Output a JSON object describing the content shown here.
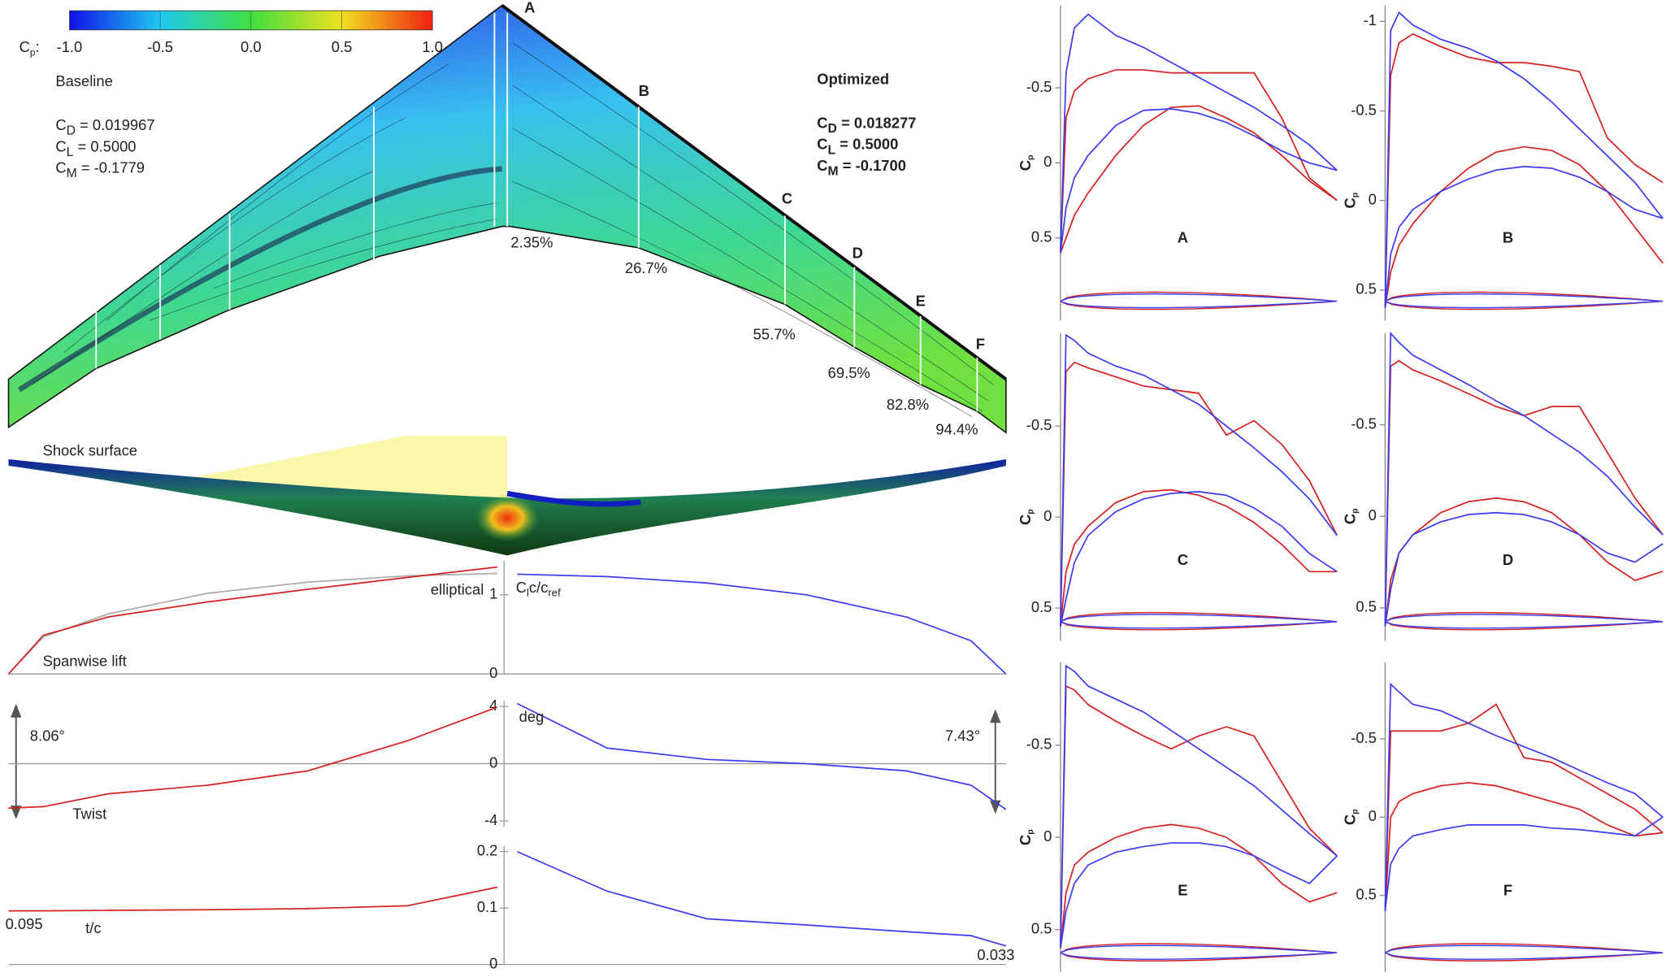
{
  "wing": {
    "colorbar": {
      "label": "C",
      "label_sub": "p",
      "label_suffix": ":",
      "lim": [
        -1,
        1
      ],
      "ticks": [
        {
          "value": -1,
          "label": "-1.0"
        },
        -0.5,
        {
          "value": 0,
          "label": "0.0"
        },
        0.5,
        {
          "value": 1,
          "label": "1.0"
        }
      ]
    },
    "baseline": {
      "title": "Baseline",
      "color": "#d42020",
      "lines": [
        {
          "symbol": "C",
          "sub": "D",
          "text": " = 0.019967"
        },
        {
          "symbol": "C",
          "sub": "L",
          "text": " = 0.5000"
        },
        {
          "symbol": "C",
          "sub": "M",
          "text": " = -0.1779"
        }
      ]
    },
    "optimized": {
      "title": "Optimized",
      "color": "#3a3af0",
      "lines": [
        {
          "symbol": "C",
          "sub": "D",
          "text": " = 0.018277"
        },
        {
          "symbol": "C",
          "sub": "L",
          "text": " = 0.5000"
        },
        {
          "symbol": "C",
          "sub": "M",
          "text": " = -0.1700"
        }
      ]
    },
    "sections": [
      {
        "label": "A",
        "span": "2.35%"
      },
      {
        "label": "B",
        "span": "26.7%"
      },
      {
        "label": "C",
        "span": "55.7%"
      },
      {
        "label": "D",
        "span": "69.5%"
      },
      {
        "label": "E",
        "span": "82.8%"
      },
      {
        "label": "F",
        "span": "94.4%"
      }
    ],
    "shock_label": "Shock surface"
  },
  "chart_data": [
    {
      "type": "line",
      "ylabel": [
        {
          "text": "C"
        },
        {
          "text": "l",
          "sub": true
        },
        {
          "text": "c/c"
        },
        {
          "text": "ref",
          "sub": true
        }
      ],
      "annotations": [
        "elliptical",
        "Spanwise lift"
      ],
      "x": [
        -1,
        -0.93,
        -0.8,
        -0.6,
        -0.4,
        -0.2,
        -0.02,
        0.02,
        0.2,
        0.4,
        0.6,
        0.8,
        0.93,
        1
      ],
      "ylim": [
        0,
        1.43
      ],
      "yticks": [
        0,
        1
      ],
      "series": [
        {
          "color": "#aaaaaa",
          "values": [
            0,
            0.47,
            0.76,
            1.02,
            1.16,
            1.24,
            1.27,
            null,
            null,
            null,
            null,
            null,
            null,
            null
          ]
        },
        {
          "color": "#d42020",
          "values": [
            0,
            0.49,
            0.72,
            0.91,
            1.07,
            1.22,
            1.35,
            null,
            null,
            null,
            null,
            null,
            null,
            null
          ]
        },
        {
          "color": "#3a3af0",
          "values": [
            null,
            null,
            null,
            null,
            null,
            null,
            null,
            1.26,
            1.23,
            1.15,
            1.0,
            0.72,
            0.42,
            0
          ]
        }
      ]
    },
    {
      "type": "line",
      "annotations": [
        "deg",
        "8.06°",
        "7.43°",
        "Twist"
      ],
      "x": [
        -1,
        -0.93,
        -0.8,
        -0.6,
        -0.4,
        -0.2,
        -0.02,
        0.02,
        0.2,
        0.4,
        0.6,
        0.8,
        0.93,
        1
      ],
      "ylim": [
        -4.4,
        4.4
      ],
      "yticks": [
        -4,
        0,
        4
      ],
      "series": [
        {
          "color": "#d42020",
          "values": [
            -3.1,
            -3.0,
            -2.1,
            -1.5,
            -0.5,
            1.6,
            3.95,
            null,
            null,
            null,
            null,
            null,
            null,
            null
          ]
        },
        {
          "color": "#3a3af0",
          "values": [
            null,
            null,
            null,
            null,
            null,
            null,
            null,
            4.2,
            1.1,
            0.3,
            0,
            -0.5,
            -1.5,
            -3.2
          ]
        }
      ]
    },
    {
      "type": "line",
      "annotations": [
        "0.095",
        "t/c",
        "0.033"
      ],
      "x": [
        -1,
        -0.93,
        -0.8,
        -0.6,
        -0.4,
        -0.2,
        -0.02,
        0.02,
        0.2,
        0.4,
        0.6,
        0.8,
        0.93,
        1
      ],
      "ylim": [
        0,
        0.21
      ],
      "yticks": [
        0,
        0.1,
        0.2
      ],
      "series": [
        {
          "color": "#d42020",
          "values": [
            0.095,
            0.095,
            0.096,
            0.097,
            0.099,
            0.104,
            0.137,
            null,
            null,
            null,
            null,
            null,
            null,
            null
          ]
        },
        {
          "color": "#3a3af0",
          "values": [
            null,
            null,
            null,
            null,
            null,
            null,
            null,
            0.2,
            0.13,
            0.081,
            0.07,
            0.058,
            0.051,
            0.033
          ]
        }
      ]
    },
    {
      "type": "cp",
      "title": "A",
      "ylabel": "C",
      "ylabel_sub": "p",
      "inverted": true,
      "x": [
        0,
        0.02,
        0.05,
        0.1,
        0.2,
        0.3,
        0.4,
        0.5,
        0.6,
        0.7,
        0.8,
        0.9,
        1
      ],
      "ylim": [
        -1.05,
        1.05
      ],
      "yticks": [
        -0.5,
        0,
        0.5
      ],
      "series": [
        {
          "color": "#d42020",
          "values": [
            0.6,
            -0.3,
            -0.48,
            -0.56,
            -0.62,
            -0.62,
            -0.6,
            -0.6,
            -0.6,
            -0.6,
            -0.3,
            0.1,
            0.25
          ]
        },
        {
          "color": "#d42020",
          "values": [
            0.6,
            0.5,
            0.35,
            0.2,
            -0.05,
            -0.25,
            -0.37,
            -0.38,
            -0.3,
            -0.2,
            -0.05,
            0.12,
            0.25
          ]
        },
        {
          "color": "#3a3af0",
          "values": [
            0.6,
            -0.6,
            -0.9,
            -0.99,
            -0.85,
            -0.77,
            -0.67,
            -0.57,
            -0.47,
            -0.37,
            -0.25,
            -0.12,
            0.05
          ]
        },
        {
          "color": "#3a3af0",
          "values": [
            0.6,
            0.3,
            0.1,
            -0.05,
            -0.25,
            -0.35,
            -0.36,
            -0.33,
            -0.27,
            -0.18,
            -0.08,
            0,
            0.05
          ]
        }
      ]
    },
    {
      "type": "cp",
      "title": "B",
      "ylabel": "C",
      "ylabel_sub": "p",
      "inverted": true,
      "x": [
        0,
        0.02,
        0.05,
        0.1,
        0.2,
        0.3,
        0.4,
        0.5,
        0.6,
        0.7,
        0.8,
        0.9,
        1
      ],
      "ylim": [
        -1.09,
        0.67
      ],
      "yticks": [
        -1,
        -0.5,
        0,
        0.5
      ],
      "series": [
        {
          "color": "#d42020",
          "values": [
            0.6,
            -0.7,
            -0.88,
            -0.93,
            -0.86,
            -0.8,
            -0.77,
            -0.77,
            -0.75,
            -0.72,
            -0.35,
            -0.2,
            -0.1
          ]
        },
        {
          "color": "#d42020",
          "values": [
            0.6,
            0.4,
            0.25,
            0.13,
            -0.05,
            -0.18,
            -0.27,
            -0.3,
            -0.28,
            -0.2,
            -0.05,
            0.15,
            0.35
          ]
        },
        {
          "color": "#3a3af0",
          "values": [
            0.6,
            -0.95,
            -1.05,
            -0.98,
            -0.9,
            -0.85,
            -0.78,
            -0.68,
            -0.55,
            -0.4,
            -0.25,
            -0.1,
            0.1
          ]
        },
        {
          "color": "#3a3af0",
          "values": [
            0.6,
            0.3,
            0.15,
            0.05,
            -0.05,
            -0.12,
            -0.17,
            -0.19,
            -0.18,
            -0.13,
            -0.05,
            0.05,
            0.1
          ]
        }
      ]
    },
    {
      "type": "cp",
      "title": "C",
      "ylabel": "C",
      "ylabel_sub": "p",
      "inverted": true,
      "x": [
        0,
        0.02,
        0.05,
        0.1,
        0.2,
        0.3,
        0.4,
        0.5,
        0.6,
        0.7,
        0.8,
        0.9,
        1
      ],
      "ylim": [
        -1.01,
        0.68
      ],
      "yticks": [
        -0.5,
        0,
        0.5
      ],
      "series": [
        {
          "color": "#d42020",
          "values": [
            0.6,
            -0.8,
            -0.85,
            -0.82,
            -0.77,
            -0.72,
            -0.7,
            -0.68,
            -0.45,
            -0.53,
            -0.4,
            -0.2,
            0.1
          ]
        },
        {
          "color": "#d42020",
          "values": [
            0.6,
            0.3,
            0.15,
            0.05,
            -0.08,
            -0.14,
            -0.15,
            -0.12,
            -0.06,
            0.03,
            0.15,
            0.3,
            0.3
          ]
        },
        {
          "color": "#3a3af0",
          "values": [
            0.6,
            -1.0,
            -0.97,
            -0.9,
            -0.83,
            -0.78,
            -0.7,
            -0.62,
            -0.5,
            -0.38,
            -0.25,
            -0.1,
            0.1
          ]
        },
        {
          "color": "#3a3af0",
          "values": [
            0.6,
            0.45,
            0.25,
            0.1,
            -0.03,
            -0.1,
            -0.13,
            -0.14,
            -0.12,
            -0.05,
            0.05,
            0.2,
            0.3
          ]
        }
      ]
    },
    {
      "type": "cp",
      "title": "D",
      "ylabel": "C",
      "ylabel_sub": "p",
      "inverted": true,
      "x": [
        0,
        0.02,
        0.05,
        0.1,
        0.2,
        0.3,
        0.4,
        0.5,
        0.6,
        0.7,
        0.8,
        0.9,
        1
      ],
      "ylim": [
        -1.0,
        0.68
      ],
      "yticks": [
        -0.5,
        0,
        0.5
      ],
      "series": [
        {
          "color": "#d42020",
          "values": [
            0.6,
            -0.82,
            -0.85,
            -0.8,
            -0.74,
            -0.67,
            -0.6,
            -0.55,
            -0.6,
            -0.6,
            -0.35,
            -0.1,
            0.1
          ]
        },
        {
          "color": "#d42020",
          "values": [
            0.6,
            0.35,
            0.2,
            0.1,
            -0.02,
            -0.08,
            -0.1,
            -0.08,
            -0.02,
            0.1,
            0.25,
            0.35,
            0.3
          ]
        },
        {
          "color": "#3a3af0",
          "values": [
            0.6,
            -1.0,
            -0.95,
            -0.88,
            -0.8,
            -0.72,
            -0.63,
            -0.55,
            -0.45,
            -0.35,
            -0.22,
            -0.05,
            0.1
          ]
        },
        {
          "color": "#3a3af0",
          "values": [
            0.6,
            0.4,
            0.2,
            0.1,
            0.03,
            -0.01,
            -0.02,
            -0.01,
            0.03,
            0.1,
            0.2,
            0.25,
            0.15
          ]
        }
      ]
    },
    {
      "type": "cp",
      "title": "E",
      "ylabel": "C",
      "ylabel_sub": "p",
      "inverted": true,
      "x": [
        0,
        0.02,
        0.05,
        0.1,
        0.2,
        0.3,
        0.4,
        0.5,
        0.6,
        0.7,
        0.8,
        0.9,
        1
      ],
      "ylim": [
        -0.95,
        0.73
      ],
      "yticks": [
        -0.5,
        0,
        0.5
      ],
      "series": [
        {
          "color": "#d42020",
          "values": [
            0.6,
            -0.82,
            -0.8,
            -0.72,
            -0.63,
            -0.55,
            -0.48,
            -0.55,
            -0.6,
            -0.55,
            -0.3,
            -0.05,
            0.1
          ]
        },
        {
          "color": "#d42020",
          "values": [
            0.6,
            0.3,
            0.15,
            0.08,
            0,
            -0.05,
            -0.07,
            -0.05,
            0,
            0.1,
            0.25,
            0.35,
            0.3
          ]
        },
        {
          "color": "#3a3af0",
          "values": [
            0.6,
            -0.93,
            -0.9,
            -0.82,
            -0.75,
            -0.68,
            -0.58,
            -0.48,
            -0.38,
            -0.28,
            -0.15,
            -0.02,
            0.1
          ]
        },
        {
          "color": "#3a3af0",
          "values": [
            0.6,
            0.4,
            0.25,
            0.15,
            0.08,
            0.05,
            0.03,
            0.03,
            0.05,
            0.1,
            0.18,
            0.25,
            0.1
          ]
        }
      ]
    },
    {
      "type": "cp",
      "title": "F",
      "ylabel": "C",
      "ylabel_sub": "p",
      "inverted": true,
      "x": [
        0,
        0.02,
        0.05,
        0.1,
        0.2,
        0.3,
        0.4,
        0.5,
        0.6,
        0.7,
        0.8,
        0.9,
        1
      ],
      "ylim": [
        -0.99,
        0.99
      ],
      "yticks": [
        -0.5,
        0,
        0.5
      ],
      "series": [
        {
          "color": "#d42020",
          "values": [
            0.6,
            -0.55,
            -0.55,
            -0.55,
            -0.55,
            -0.6,
            -0.72,
            -0.38,
            -0.35,
            -0.25,
            -0.15,
            -0.05,
            0.1
          ]
        },
        {
          "color": "#d42020",
          "values": [
            0.6,
            0,
            -0.1,
            -0.15,
            -0.2,
            -0.22,
            -0.2,
            -0.15,
            -0.1,
            -0.05,
            0.05,
            0.12,
            0.1
          ]
        },
        {
          "color": "#3a3af0",
          "values": [
            0.6,
            -0.85,
            -0.8,
            -0.72,
            -0.68,
            -0.6,
            -0.52,
            -0.45,
            -0.38,
            -0.3,
            -0.22,
            -0.15,
            0
          ]
        },
        {
          "color": "#3a3af0",
          "values": [
            0.6,
            0.3,
            0.2,
            0.12,
            0.08,
            0.05,
            0.05,
            0.05,
            0.07,
            0.08,
            0.1,
            0.12,
            0
          ]
        }
      ]
    }
  ]
}
